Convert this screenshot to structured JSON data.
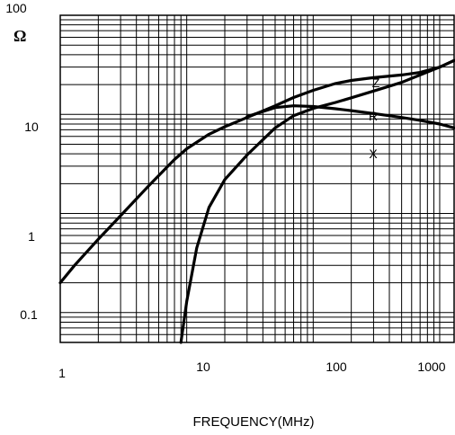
{
  "chart_data": {
    "type": "line",
    "x_scale": "log",
    "y_scale": "log",
    "xlim": [
      1,
      1300
    ],
    "ylim": [
      0.05,
      100
    ],
    "xlabel": "FREQUENCY(MHz)",
    "ylabel": "Ω",
    "x_ticks": [
      "1",
      "10",
      "100",
      "1000"
    ],
    "y_ticks": [
      "100",
      "10",
      "1",
      "0.1"
    ],
    "grid": true,
    "series": [
      {
        "name": "Z",
        "x": [
          1,
          1.3,
          2,
          3,
          5,
          8,
          10,
          15,
          20,
          30,
          50,
          70,
          100,
          150,
          200,
          300,
          500,
          700,
          1000,
          1300
        ],
        "y": [
          0.2,
          0.3,
          0.55,
          0.95,
          1.9,
          3.5,
          4.5,
          6.3,
          7.5,
          9.3,
          12.2,
          14.8,
          17.5,
          20.5,
          22,
          23.5,
          25,
          26.5,
          30,
          35
        ]
      },
      {
        "name": "R",
        "x": [
          9,
          10,
          12,
          15,
          20,
          30,
          50,
          70,
          100,
          150,
          200,
          300,
          500,
          700,
          1000,
          1300
        ],
        "y": [
          0.05,
          0.13,
          0.45,
          1.15,
          2.2,
          3.9,
          7.3,
          9.7,
          11.5,
          13.2,
          14.7,
          17.2,
          21,
          25,
          30,
          35
        ]
      },
      {
        "name": "X",
        "x": [
          30,
          50,
          70,
          100,
          150,
          200,
          300,
          500,
          700,
          1000,
          1300
        ],
        "y": [
          9.5,
          11.7,
          12.2,
          12.0,
          11.4,
          10.9,
          10.2,
          9.3,
          8.7,
          8.0,
          7.3
        ]
      }
    ]
  }
}
